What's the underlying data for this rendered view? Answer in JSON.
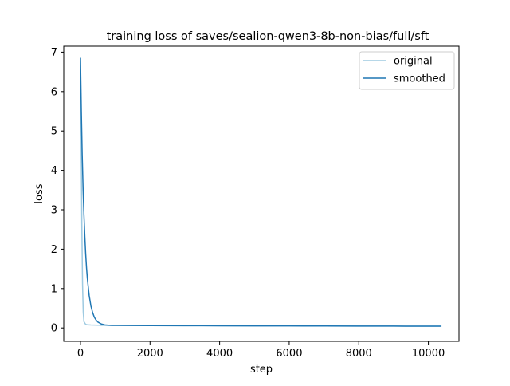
{
  "chart_data": {
    "type": "line",
    "title": "training loss of saves/sealion-qwen3-8b-non-bias/full/sft",
    "xlabel": "step",
    "ylabel": "loss",
    "xlim": [
      -480,
      10880
    ],
    "ylim": [
      -0.34,
      7.15
    ],
    "xticks": [
      0,
      2000,
      4000,
      6000,
      8000,
      10000
    ],
    "yticks": [
      0,
      1,
      2,
      3,
      4,
      5,
      6,
      7
    ],
    "grid": false,
    "legend": "upper right",
    "series": [
      {
        "name": "original",
        "color": "#9ecae1",
        "x": [
          0,
          20,
          40,
          60,
          80,
          100,
          150,
          200,
          300,
          500,
          800,
          1000,
          2000,
          3000,
          4000,
          5000,
          6000,
          7000,
          8000,
          9000,
          10000,
          10360
        ],
        "y": [
          6.84,
          4.8,
          2.6,
          1.1,
          0.4,
          0.16,
          0.09,
          0.08,
          0.075,
          0.07,
          0.065,
          0.064,
          0.061,
          0.058,
          0.055,
          0.053,
          0.051,
          0.049,
          0.047,
          0.046,
          0.045,
          0.045
        ]
      },
      {
        "name": "smoothed",
        "color": "#1f77b4",
        "x": [
          0,
          25,
          50,
          75,
          100,
          125,
          150,
          175,
          200,
          250,
          300,
          350,
          400,
          450,
          500,
          600,
          700,
          800,
          900,
          1000,
          1500,
          2000,
          3000,
          4000,
          5000,
          6000,
          7000,
          8000,
          9000,
          10000,
          10360
        ],
        "y": [
          6.84,
          5.5,
          4.4,
          3.55,
          2.88,
          2.33,
          1.88,
          1.52,
          1.24,
          0.83,
          0.56,
          0.39,
          0.27,
          0.2,
          0.15,
          0.1,
          0.078,
          0.069,
          0.066,
          0.064,
          0.062,
          0.061,
          0.058,
          0.055,
          0.053,
          0.051,
          0.049,
          0.047,
          0.046,
          0.045,
          0.045
        ]
      }
    ]
  }
}
